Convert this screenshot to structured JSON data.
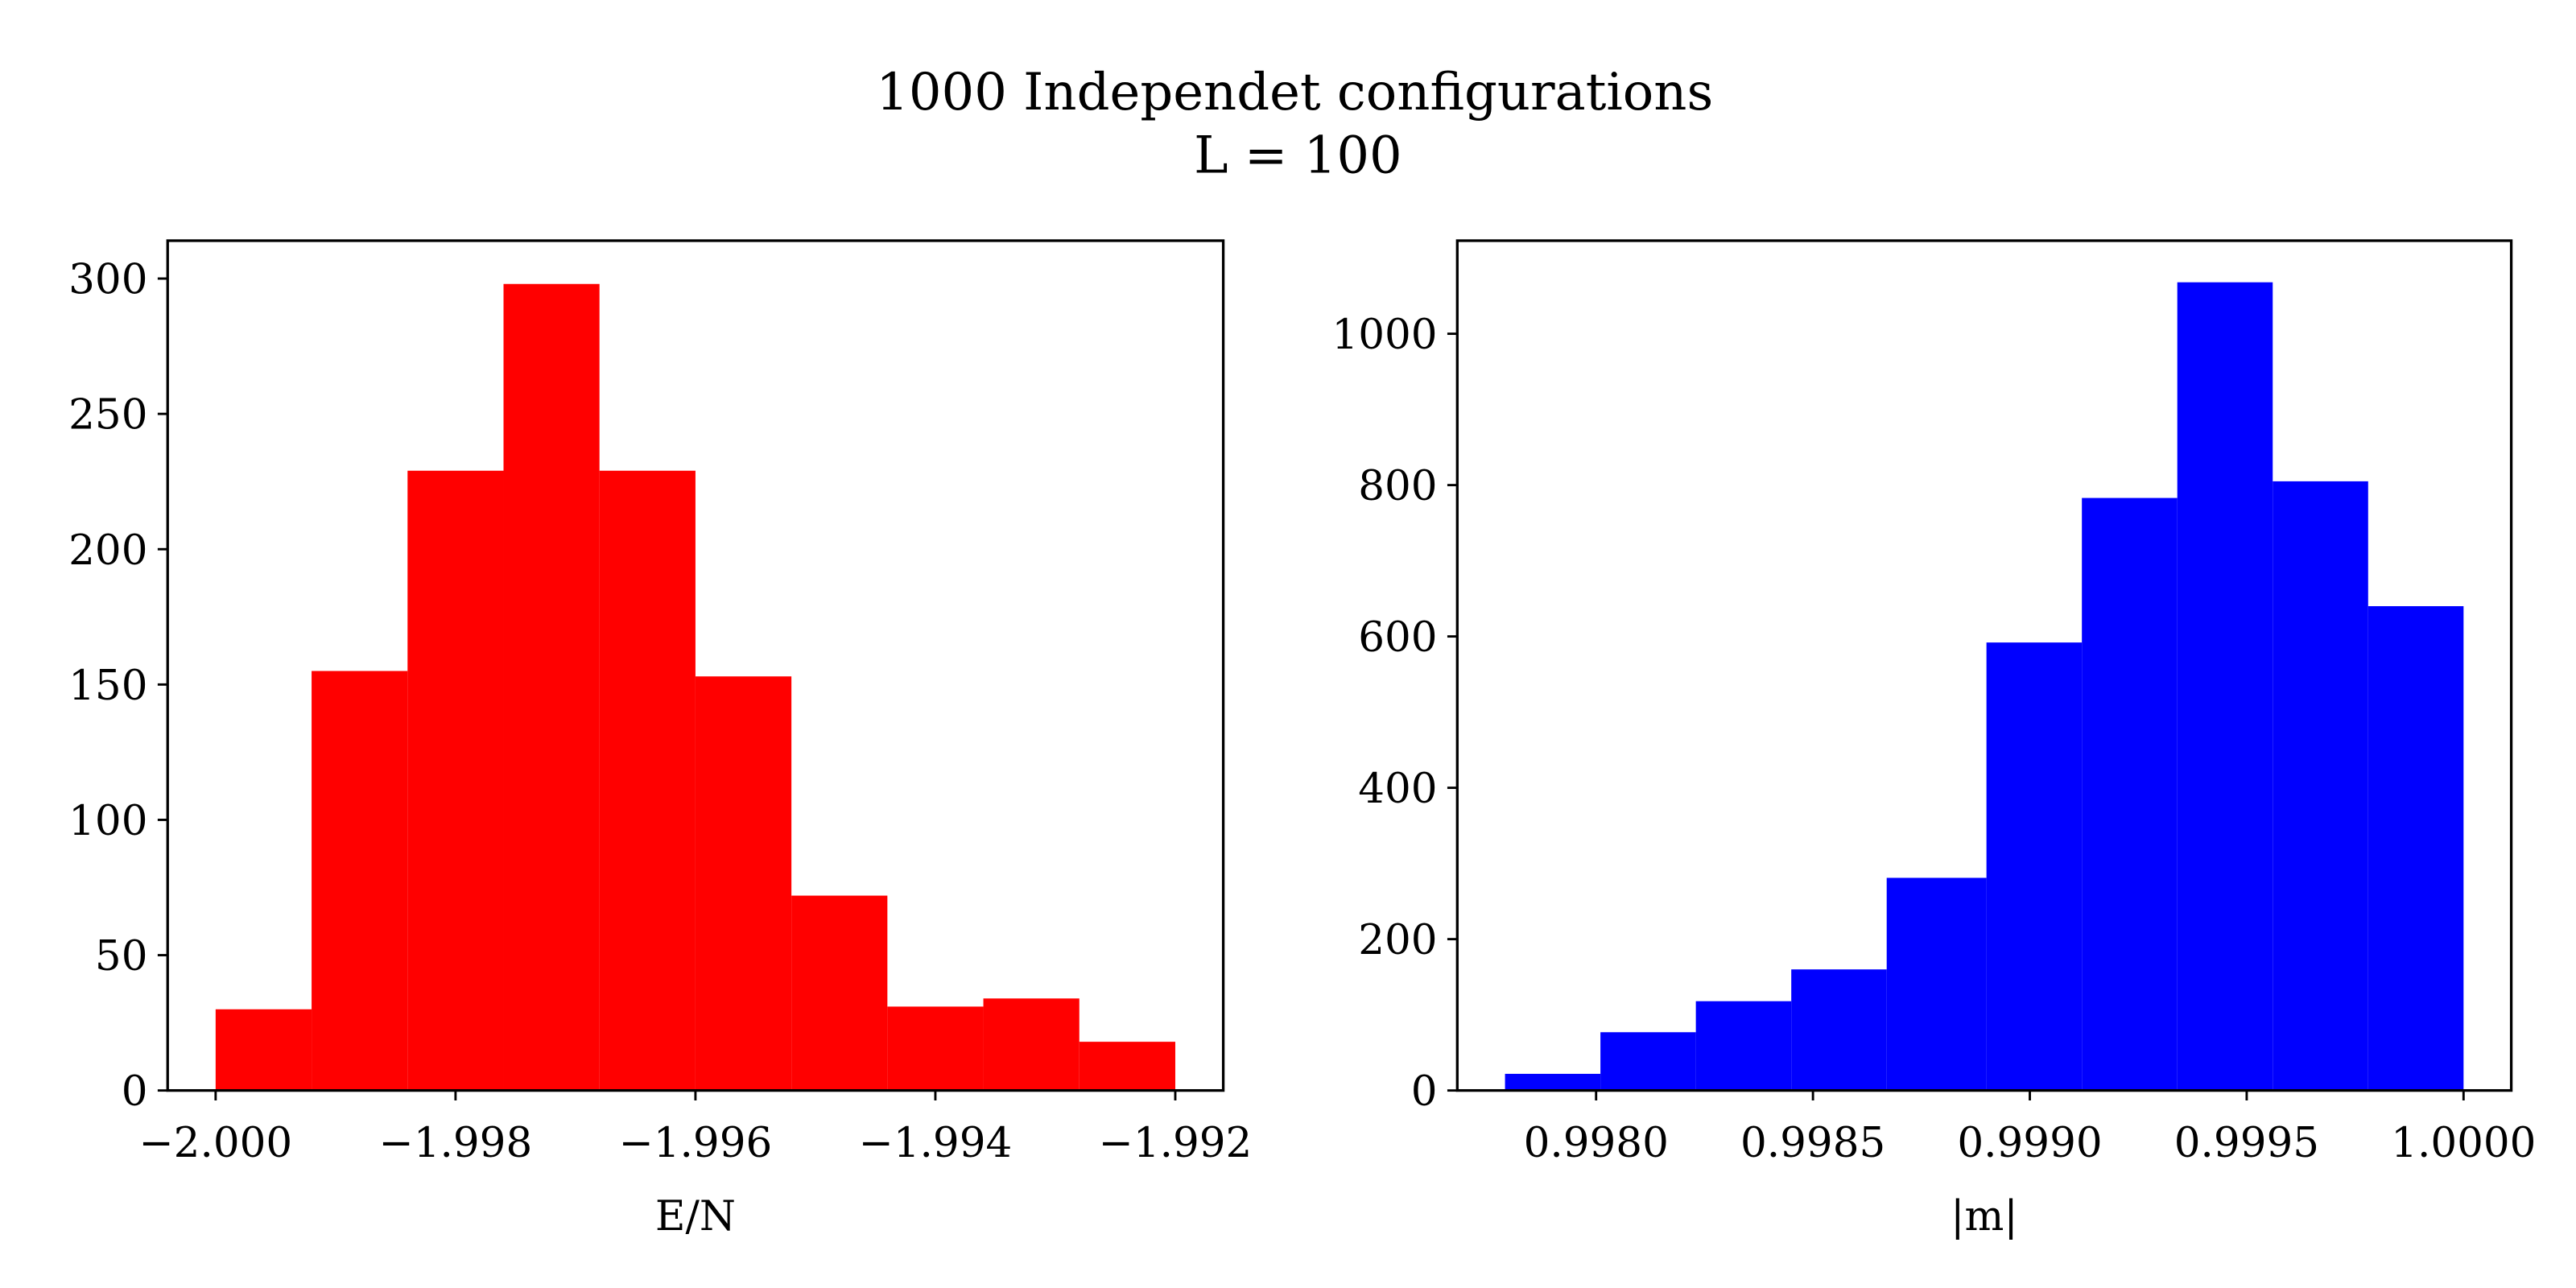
{
  "title": "1000 Independet configurations",
  "subtitle": "L = 100",
  "chart_data": [
    {
      "type": "histogram",
      "color": "#ff0000",
      "xlabel": "E/N",
      "bins": [
        -2.0,
        -1.9992,
        -1.9984,
        -1.9976,
        -1.9968,
        -1.996,
        -1.9952,
        -1.9944,
        -1.9936,
        -1.9928,
        -1.992
      ],
      "values": [
        30,
        155,
        229,
        298,
        229,
        153,
        72,
        31,
        34,
        18
      ],
      "xlim": [
        -2.0004,
        -1.9916
      ],
      "ylim": [
        0,
        314
      ],
      "xticks": [
        {
          "value": -2.0,
          "label": "−2.000"
        },
        {
          "value": -1.998,
          "label": "−1.998"
        },
        {
          "value": -1.996,
          "label": "−1.996"
        },
        {
          "value": -1.994,
          "label": "−1.994"
        },
        {
          "value": -1.992,
          "label": "−1.992"
        }
      ],
      "yticks": [
        0,
        50,
        100,
        150,
        200,
        250,
        300
      ],
      "grid": false
    },
    {
      "type": "histogram",
      "color": "#0000ff",
      "xlabel": "|m|",
      "bins": [
        0.99779,
        0.99801,
        0.99823,
        0.99845,
        0.99867,
        0.9989,
        0.99912,
        0.99934,
        0.99956,
        0.99978,
        1.0
      ],
      "values": [
        22,
        77,
        118,
        160,
        281,
        592,
        783,
        1068,
        805,
        640
      ],
      "xlim": [
        0.99768,
        1.00011
      ],
      "ylim": [
        0,
        1123
      ],
      "xticks": [
        {
          "value": 0.998,
          "label": "0.9980"
        },
        0.9985,
        {
          "value": 0.999,
          "label": "0.9990"
        },
        0.9995,
        {
          "value": 1.0,
          "label": "1.0000"
        }
      ],
      "yticks": [
        0,
        200,
        400,
        600,
        800,
        1000
      ],
      "grid": false
    }
  ]
}
